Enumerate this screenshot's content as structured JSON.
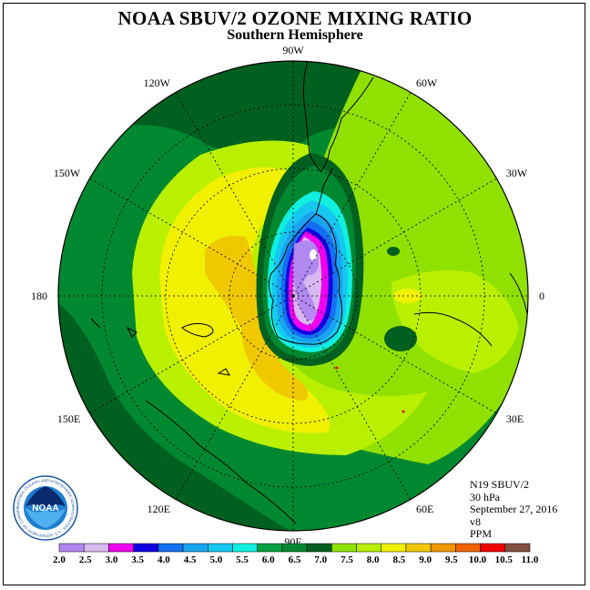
{
  "header": {
    "title": "NOAA SBUV/2 OZONE MIXING RATIO",
    "subtitle": "Southern Hemisphere"
  },
  "map": {
    "projection": "south-polar-stereographic",
    "longitude_labels": [
      {
        "label": "90W",
        "angle": -90
      },
      {
        "label": "60W",
        "angle": -60
      },
      {
        "label": "30W",
        "angle": -30
      },
      {
        "label": "0",
        "angle": 0
      },
      {
        "label": "30E",
        "angle": 30
      },
      {
        "label": "60E",
        "angle": 60
      },
      {
        "label": "90E",
        "angle": 90
      },
      {
        "label": "120E",
        "angle": 120
      },
      {
        "label": "150E",
        "angle": 150
      },
      {
        "label": "180",
        "angle": 180
      },
      {
        "label": "150W",
        "angle": -150
      },
      {
        "label": "120W",
        "angle": -120
      }
    ],
    "ozone_hole_min_ppm": 2.5,
    "colors": {
      "frame": "#000000",
      "graticule": "#000000"
    }
  },
  "info": {
    "satellite": "N19 SBUV/2",
    "level": "30 hPa",
    "date": "September 27, 2016",
    "version": "v8",
    "units": "PPM"
  },
  "logo": {
    "text": "NOAA",
    "ring_text": "NATIONAL OCEANIC AND ATMOSPHERIC ADMINISTRATION · U.S. DEPARTMENT OF COMMERCE ·"
  },
  "colorbar": {
    "ticks": [
      "2.0",
      "2.5",
      "3.0",
      "3.5",
      "4.0",
      "4.5",
      "5.0",
      "5.5",
      "6.0",
      "6.5",
      "7.0",
      "7.5",
      "8.0",
      "8.5",
      "9.0",
      "9.5",
      "10.0",
      "10.5",
      "11.0"
    ],
    "colors": [
      "#b088f0",
      "#d8b8f0",
      "#f000f0",
      "#1000e0",
      "#1470f0",
      "#1aa4f0",
      "#16c8f0",
      "#10f0e0",
      "#00a040",
      "#008830",
      "#006020",
      "#90e000",
      "#b8f000",
      "#f0f000",
      "#f0c800",
      "#f09600",
      "#f06400",
      "#f00000",
      "#805040"
    ]
  }
}
